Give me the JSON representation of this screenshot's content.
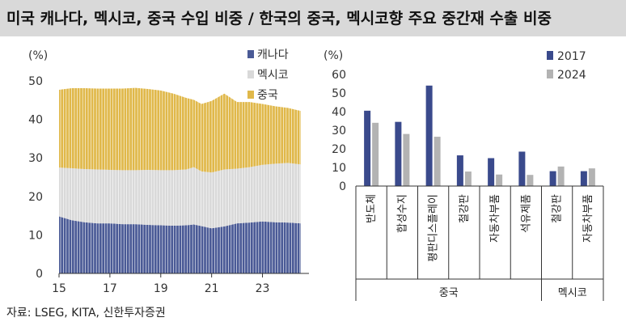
{
  "title": "미국 캐나다, 멕시코, 중국 수입 비중 / 한국의 중국, 멕시코향 주요 중간재 수출 비중",
  "source": "자료: LSEG, KITA, 신한투자증권",
  "chart_data": [
    {
      "type": "area",
      "stacked": true,
      "ylabel": "(%)",
      "ylim": [
        0,
        50
      ],
      "yticks": [
        0,
        10,
        20,
        30,
        40,
        50
      ],
      "xlim": [
        2015,
        2024.7
      ],
      "xticks": [
        15,
        17,
        19,
        21,
        23
      ],
      "legend_position": "top-right",
      "series": [
        {
          "name": "캐나다",
          "color": "#4a5a96",
          "x": [
            2015.0,
            2015.5,
            2016.0,
            2016.5,
            2017.0,
            2017.5,
            2018.0,
            2018.5,
            2019.0,
            2019.5,
            2020.0,
            2020.3,
            2020.6,
            2021.0,
            2021.5,
            2022.0,
            2022.5,
            2023.0,
            2023.5,
            2024.0,
            2024.5
          ],
          "values": [
            14.8,
            13.8,
            13.3,
            13.0,
            13.0,
            12.8,
            12.8,
            12.6,
            12.5,
            12.4,
            12.5,
            12.7,
            12.3,
            11.7,
            12.2,
            13.0,
            13.2,
            13.5,
            13.3,
            13.2,
            13.0
          ]
        },
        {
          "name": "멕시코",
          "color": "#d9d9d9",
          "x": [
            2015.0,
            2015.5,
            2016.0,
            2016.5,
            2017.0,
            2017.5,
            2018.0,
            2018.5,
            2019.0,
            2019.5,
            2020.0,
            2020.3,
            2020.6,
            2021.0,
            2021.5,
            2022.0,
            2022.5,
            2023.0,
            2023.5,
            2024.0,
            2024.5
          ],
          "values": [
            12.7,
            13.5,
            13.8,
            14.0,
            13.9,
            14.0,
            14.0,
            14.3,
            14.3,
            14.4,
            14.5,
            14.9,
            14.2,
            14.5,
            14.8,
            14.2,
            14.4,
            14.7,
            15.2,
            15.5,
            15.3
          ]
        },
        {
          "name": "중국",
          "color": "#e0b84a",
          "x": [
            2015.0,
            2015.5,
            2016.0,
            2016.5,
            2017.0,
            2017.5,
            2018.0,
            2018.5,
            2019.0,
            2019.5,
            2020.0,
            2020.3,
            2020.6,
            2021.0,
            2021.5,
            2022.0,
            2022.5,
            2023.0,
            2023.5,
            2024.0,
            2024.5
          ],
          "values": [
            20.2,
            20.8,
            21.0,
            21.0,
            21.1,
            21.2,
            21.4,
            21.0,
            20.7,
            19.9,
            18.6,
            17.5,
            17.5,
            18.6,
            19.7,
            17.3,
            16.9,
            15.8,
            14.9,
            14.3,
            13.9
          ]
        }
      ]
    },
    {
      "type": "bar",
      "ylabel": "(%)",
      "ylim": [
        0,
        60
      ],
      "yticks": [
        0,
        10,
        20,
        30,
        40,
        50,
        60
      ],
      "legend_position": "top-right",
      "categories": [
        "반도체",
        "합성수지",
        "평판디스플레이",
        "철강판",
        "자동차부품",
        "석유제품",
        "철강판",
        "자동차부품"
      ],
      "groups": [
        {
          "label": "중국",
          "start": 0,
          "count": 6
        },
        {
          "label": "멕시코",
          "start": 6,
          "count": 2
        }
      ],
      "series": [
        {
          "name": "2017",
          "color": "#3a4a8c",
          "values": [
            40.5,
            34.5,
            54.0,
            16.5,
            15.0,
            18.5,
            8.0,
            8.0
          ]
        },
        {
          "name": "2024",
          "color": "#b3b3b3",
          "values": [
            34.0,
            28.0,
            26.5,
            7.8,
            6.2,
            6.0,
            10.5,
            9.5
          ]
        }
      ]
    }
  ]
}
